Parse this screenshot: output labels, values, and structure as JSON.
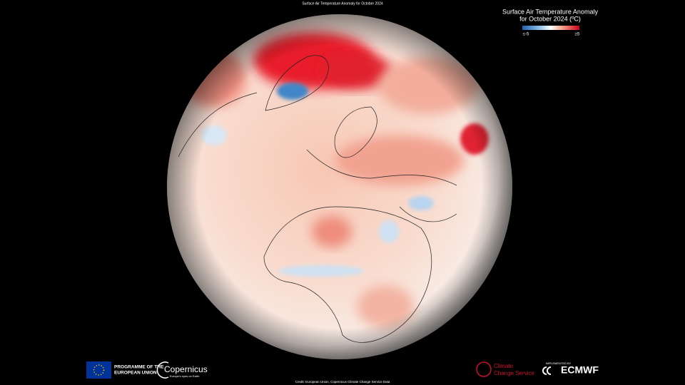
{
  "header": {
    "title": "Surface Air Temperature Anomaly for October 2024"
  },
  "legend": {
    "title_line1": "Surface Air Temperature Anomaly",
    "title_line2": "for October 2024 (ºC)",
    "min_label": "≤-5",
    "max_label": "≥5"
  },
  "footer": {
    "eu": {
      "line1": "PROGRAMME OF THE",
      "line2": "EUROPEAN UNION"
    },
    "copernicus": {
      "name": "Copernicus",
      "tagline": "Europe's eyes on Earth"
    },
    "c3s": {
      "line1": "Climate",
      "line2": "Change Service"
    },
    "ecmwf": {
      "caption": "IMPLEMENTED BY",
      "name": "ECMWF"
    },
    "credit": "Credit: European Union, Copernicus Climate Change Service Data"
  }
}
